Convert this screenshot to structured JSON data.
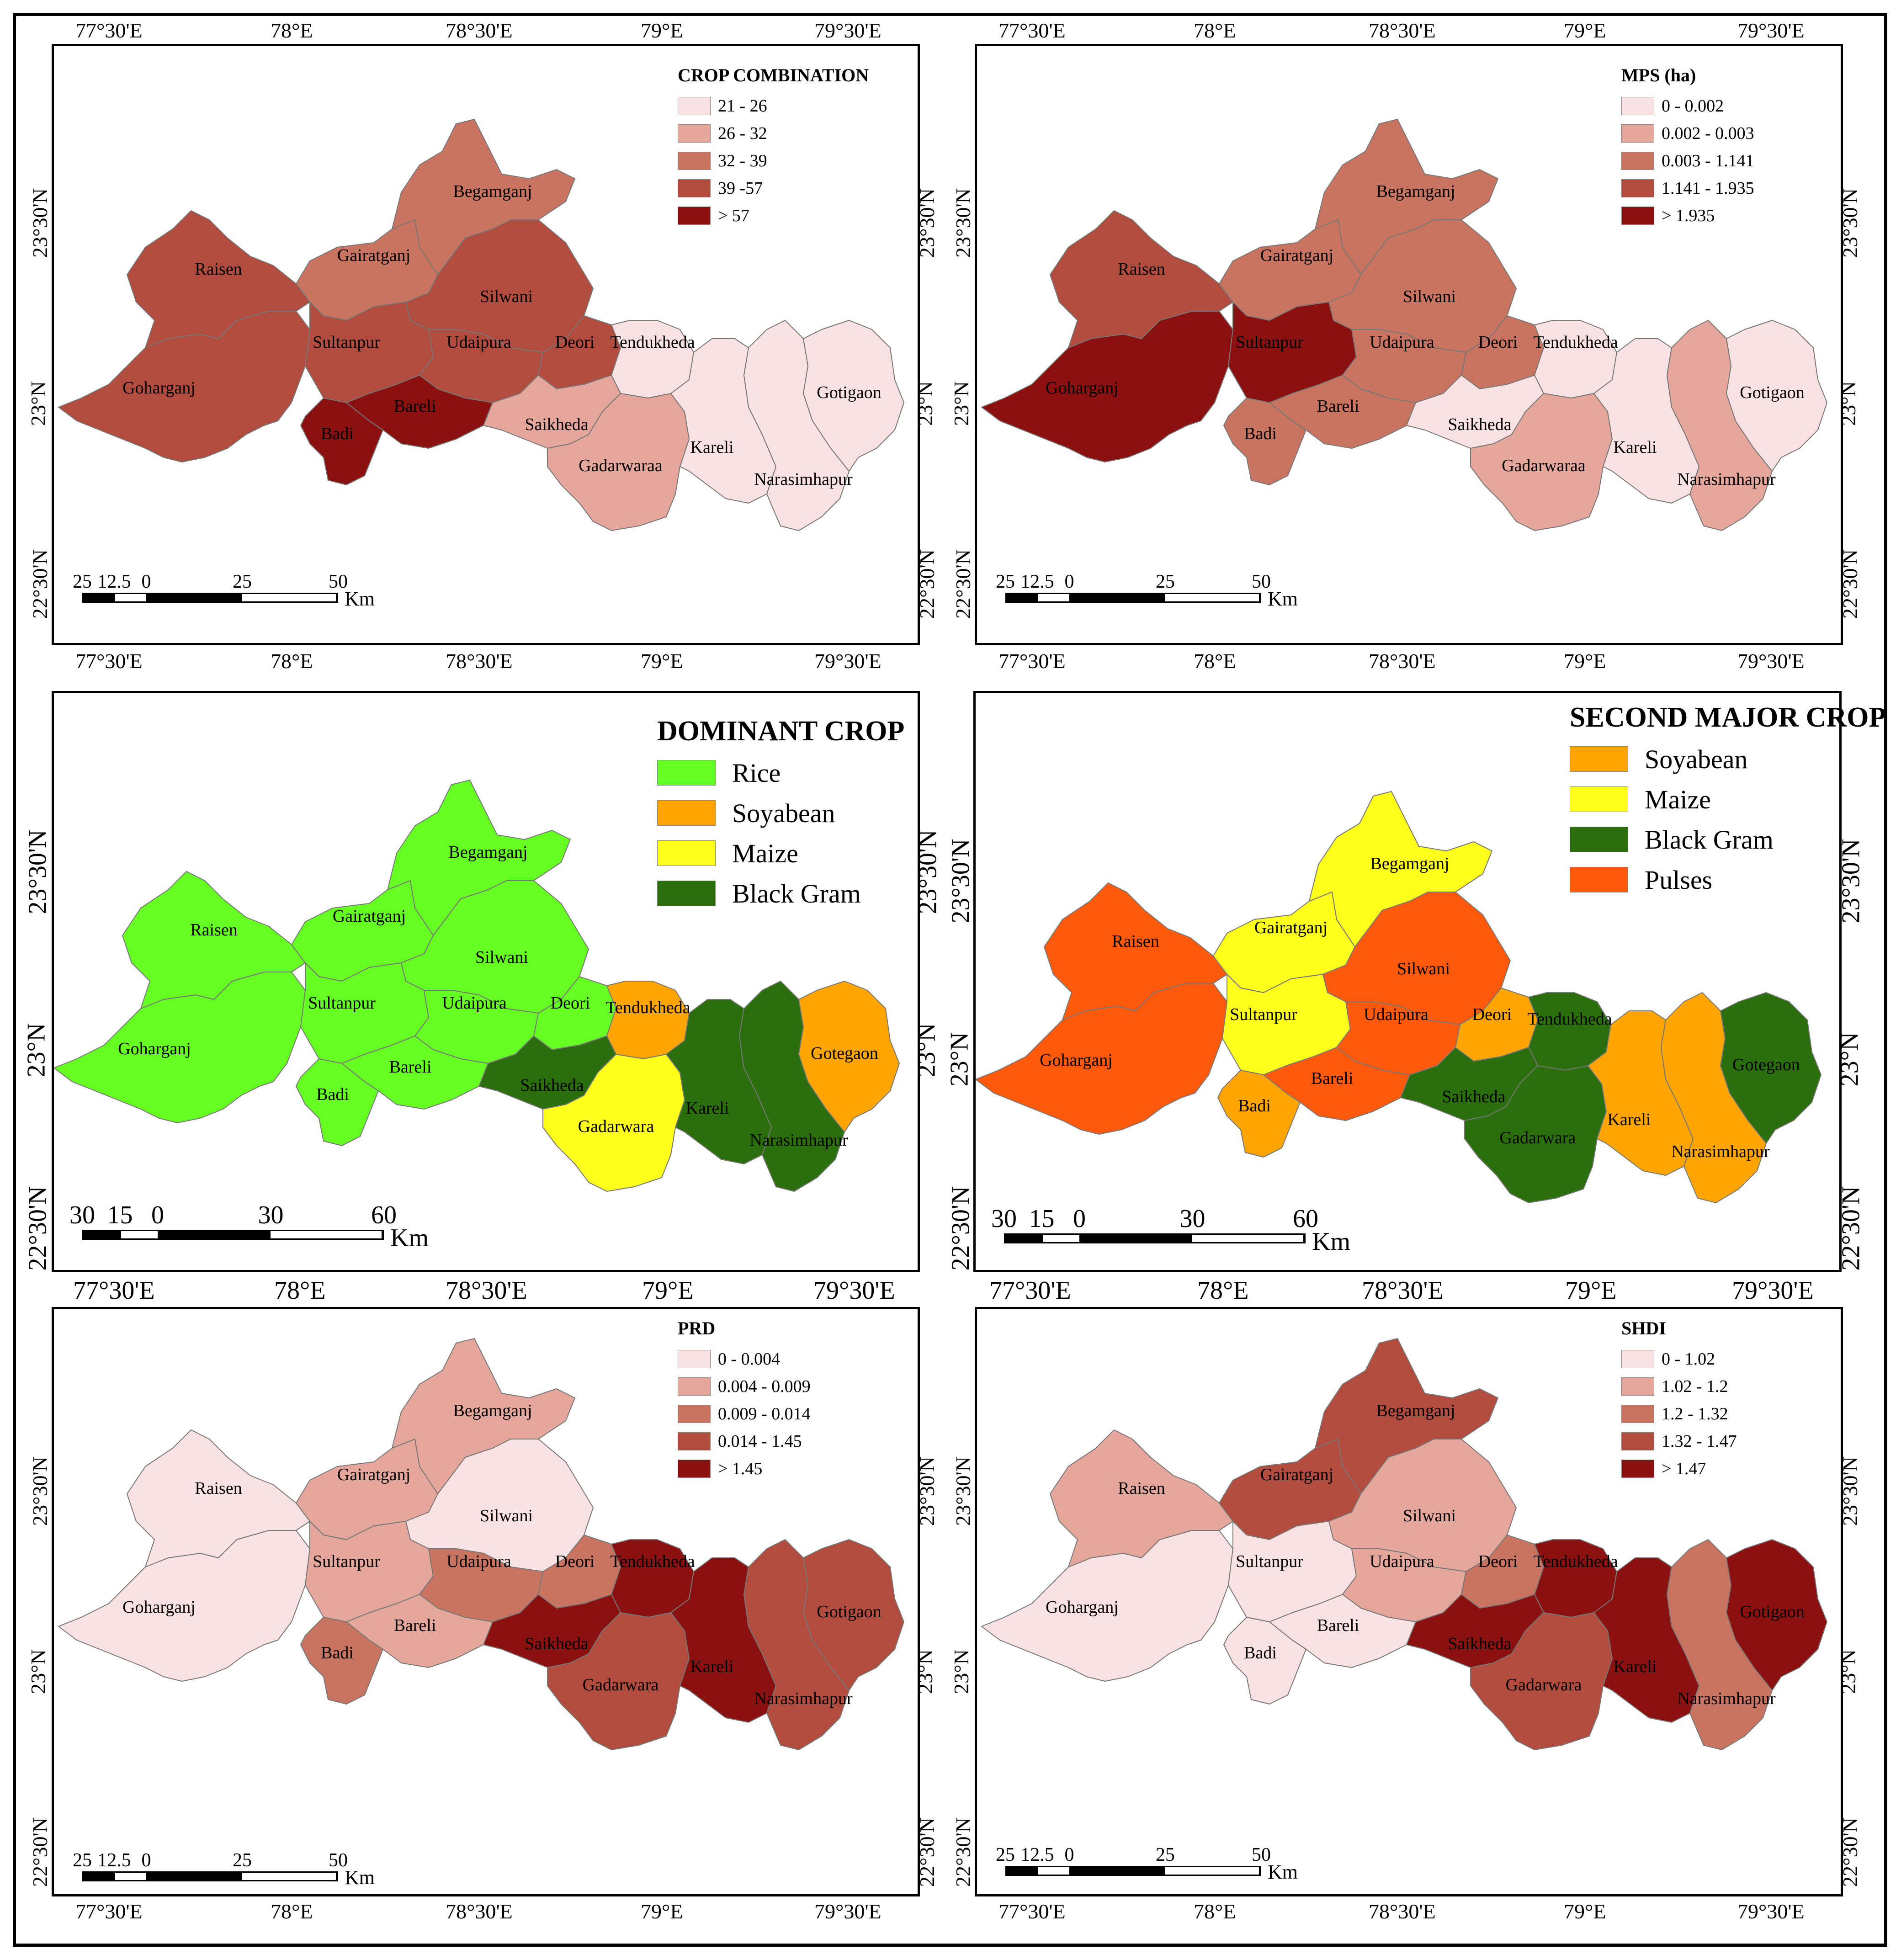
{
  "axes_small": {
    "lon": [
      "77°30'E",
      "78°E",
      "78°30'E",
      "79°E",
      "79°30'E"
    ],
    "lat": [
      "23°30'N",
      "23°N",
      "22°30'N"
    ]
  },
  "scale_small": {
    "ticks": [
      "25",
      "12.5",
      "0",
      "25",
      "50"
    ],
    "unit": "Km"
  },
  "scale_big": {
    "ticks": [
      "30",
      "15",
      "0",
      "30",
      "60"
    ],
    "unit": "Km"
  },
  "district_labels": {
    "raisen": "Raisen",
    "gairatganj": "Gairatganj",
    "begamganj": "Begamganj",
    "silwani": "Silwani",
    "sultanpur": "Sultanpur",
    "udaipura": "Udaipura",
    "deori": "Deori",
    "tendukheda": "Tendukheda",
    "goharganj": "Goharganj",
    "bareli": "Bareli",
    "badi": "Badi",
    "saikheda": "Saikheda",
    "gadarwaraa": "Gadarwaraa",
    "gadarwara": "Gadarwara",
    "kareli": "Kareli",
    "narasimhapur": "Narasimhapur",
    "gotigaon": "Gotigaon",
    "gotegaon": "Gotegaon"
  },
  "panels": {
    "crop_combination": {
      "legend_title": "CROP COMBINATION",
      "legend": [
        {
          "label": "21 - 26",
          "color": "#fbe2e2"
        },
        {
          "label": "26 - 32",
          "color": "#e5a69c"
        },
        {
          "label": "32 - 39",
          "color": "#c97460"
        },
        {
          "label": "39 -57",
          "color": "#b14c3e"
        },
        {
          "label": "> 57",
          "color": "#8b1010"
        }
      ]
    },
    "mps": {
      "legend_title": "MPS (ha)",
      "legend": [
        {
          "label": "0 - 0.002",
          "color": "#fbe2e2"
        },
        {
          "label": "0.002 - 0.003",
          "color": "#e5a69c"
        },
        {
          "label": "0.003 - 1.141",
          "color": "#c97460"
        },
        {
          "label": "1.141 - 1.935",
          "color": "#b14c3e"
        },
        {
          "label": "> 1.935",
          "color": "#8b1010"
        }
      ]
    },
    "dominant_crop": {
      "legend_title": "DOMINANT CROP",
      "legend": [
        {
          "label": "Rice",
          "color": "#66ff22"
        },
        {
          "label": "Soyabean",
          "color": "#ffa500"
        },
        {
          "label": "Maize",
          "color": "#ffff1e"
        },
        {
          "label": "Black Gram",
          "color": "#2b6e0c"
        }
      ]
    },
    "second_major_crop": {
      "legend_title": "SECOND MAJOR CROP",
      "legend": [
        {
          "label": "Soyabean",
          "color": "#ffa500"
        },
        {
          "label": "Maize",
          "color": "#ffff1e"
        },
        {
          "label": "Black Gram",
          "color": "#2b6e0c"
        },
        {
          "label": "Pulses",
          "color": "#ff5a0c"
        }
      ]
    },
    "prd": {
      "legend_title": "PRD",
      "legend": [
        {
          "label": "0 - 0.004",
          "color": "#fbe2e2"
        },
        {
          "label": "0.004 - 0.009",
          "color": "#e5a69c"
        },
        {
          "label": "0.009 - 0.014",
          "color": "#c97460"
        },
        {
          "label": "0.014 - 1.45",
          "color": "#b14c3e"
        },
        {
          "label": "> 1.45",
          "color": "#8b1010"
        }
      ]
    },
    "shdi": {
      "legend_title": "SHDI",
      "legend": [
        {
          "label": "0 - 1.02",
          "color": "#fbe2e2"
        },
        {
          "label": "1.02 - 1.2",
          "color": "#e5a69c"
        },
        {
          "label": "1.2 - 1.32",
          "color": "#c97460"
        },
        {
          "label": "1.32 - 1.47",
          "color": "#b14c3e"
        },
        {
          "label": "> 1.47",
          "color": "#8b1010"
        }
      ]
    }
  },
  "district_classes": {
    "crop_combination": {
      "raisen": 3,
      "gairatganj": 2,
      "begamganj": 2,
      "silwani": 3,
      "sultanpur": 3,
      "udaipura": 3,
      "deori": 3,
      "tendukheda": 0,
      "goharganj": 3,
      "bareli": 4,
      "badi": 4,
      "saikheda": 1,
      "gadarwara": 1,
      "kareli": 0,
      "narasimhapur": 0,
      "gotigaon": 0
    },
    "mps": {
      "raisen": 3,
      "gairatganj": 2,
      "begamganj": 2,
      "silwani": 2,
      "sultanpur": 4,
      "udaipura": 2,
      "deori": 2,
      "tendukheda": 0,
      "goharganj": 4,
      "bareli": 2,
      "badi": 2,
      "saikheda": 0,
      "gadarwara": 1,
      "kareli": 0,
      "narasimhapur": 1,
      "gotigaon": 0
    },
    "dominant_crop": {
      "raisen": 0,
      "gairatganj": 0,
      "begamganj": 0,
      "silwani": 0,
      "sultanpur": 0,
      "udaipura": 0,
      "deori": 0,
      "tendukheda": 1,
      "goharganj": 0,
      "bareli": 0,
      "badi": 0,
      "saikheda": 3,
      "gadarwara": 2,
      "kareli": 3,
      "narasimhapur": 3,
      "gotigaon": 1
    },
    "second_major_crop": {
      "raisen": 3,
      "gairatganj": 1,
      "begamganj": 1,
      "silwani": 3,
      "sultanpur": 1,
      "udaipura": 3,
      "deori": 0,
      "tendukheda": 2,
      "goharganj": 3,
      "bareli": 3,
      "badi": 0,
      "saikheda": 2,
      "gadarwara": 2,
      "kareli": 0,
      "narasimhapur": 0,
      "gotigaon": 2
    },
    "prd": {
      "raisen": 0,
      "gairatganj": 1,
      "begamganj": 1,
      "silwani": 0,
      "sultanpur": 1,
      "udaipura": 2,
      "deori": 2,
      "tendukheda": 4,
      "goharganj": 0,
      "bareli": 1,
      "badi": 2,
      "saikheda": 4,
      "gadarwara": 3,
      "kareli": 4,
      "narasimhapur": 3,
      "gotigaon": 3
    },
    "shdi": {
      "raisen": 1,
      "gairatganj": 3,
      "begamganj": 3,
      "silwani": 1,
      "sultanpur": 0,
      "udaipura": 1,
      "deori": 2,
      "tendukheda": 4,
      "goharganj": 0,
      "bareli": 0,
      "badi": 0,
      "saikheda": 4,
      "gadarwara": 3,
      "kareli": 4,
      "narasimhapur": 2,
      "gotigaon": 4
    }
  }
}
